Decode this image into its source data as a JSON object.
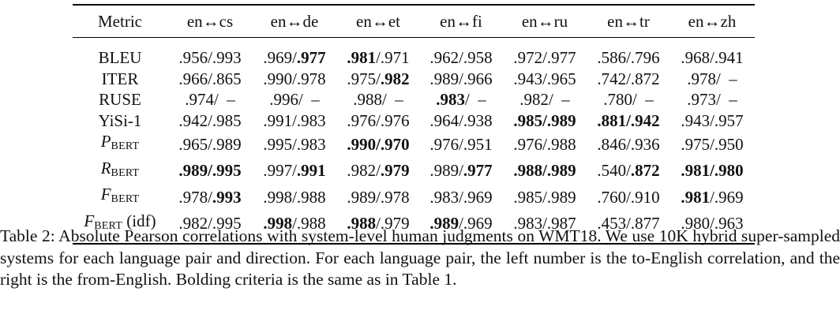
{
  "table": {
    "headers": [
      "Metric",
      "en↔cs",
      "en↔de",
      "en↔et",
      "en↔fi",
      "en↔ru",
      "en↔tr",
      "en↔zh"
    ],
    "rows": [
      {
        "metric": {
          "text": "BLEU"
        },
        "cells": [
          [
            {
              "t": ".956/.993",
              "b": false
            }
          ],
          [
            {
              "t": ".969/",
              "b": false
            },
            {
              "t": ".977",
              "b": true
            }
          ],
          [
            {
              "t": ".981",
              "b": true
            },
            {
              "t": "/.971",
              "b": false
            }
          ],
          [
            {
              "t": ".962/.958",
              "b": false
            }
          ],
          [
            {
              "t": ".972/.977",
              "b": false
            }
          ],
          [
            {
              "t": ".586/.796",
              "b": false
            }
          ],
          [
            {
              "t": ".968/.941",
              "b": false
            }
          ]
        ]
      },
      {
        "metric": {
          "text": "ITER"
        },
        "cells": [
          [
            {
              "t": ".966/.865",
              "b": false
            }
          ],
          [
            {
              "t": ".990/.978",
              "b": false
            }
          ],
          [
            {
              "t": ".975/",
              "b": false
            },
            {
              "t": ".982",
              "b": true
            }
          ],
          [
            {
              "t": ".989/.966",
              "b": false
            }
          ],
          [
            {
              "t": ".943/.965",
              "b": false
            }
          ],
          [
            {
              "t": ".742/.872",
              "b": false
            }
          ],
          [
            {
              "t": ".978/  –",
              "b": false
            }
          ]
        ]
      },
      {
        "metric": {
          "text": "RUSE"
        },
        "cells": [
          [
            {
              "t": ".974/  –",
              "b": false
            }
          ],
          [
            {
              "t": ".996/  –",
              "b": false
            }
          ],
          [
            {
              "t": ".988/  –",
              "b": false
            }
          ],
          [
            {
              "t": ".983",
              "b": true
            },
            {
              "t": "/  –",
              "b": false
            }
          ],
          [
            {
              "t": ".982/  –",
              "b": false
            }
          ],
          [
            {
              "t": ".780/  –",
              "b": false
            }
          ],
          [
            {
              "t": ".973/  –",
              "b": false
            }
          ]
        ]
      },
      {
        "metric": {
          "text": "YiSi-1"
        },
        "cells": [
          [
            {
              "t": ".942/.985",
              "b": false
            }
          ],
          [
            {
              "t": ".991/.983",
              "b": false
            }
          ],
          [
            {
              "t": ".976/.976",
              "b": false
            }
          ],
          [
            {
              "t": ".964/.938",
              "b": false
            }
          ],
          [
            {
              "t": ".985/.989",
              "b": true
            }
          ],
          [
            {
              "t": ".881/.942",
              "b": true
            }
          ],
          [
            {
              "t": ".943/.957",
              "b": false
            }
          ]
        ]
      },
      {
        "metric": {
          "sym": "P",
          "sub": "BERT"
        },
        "cells": [
          [
            {
              "t": ".965/.989",
              "b": false
            }
          ],
          [
            {
              "t": ".995/.983",
              "b": false
            }
          ],
          [
            {
              "t": ".990/.970",
              "b": true
            }
          ],
          [
            {
              "t": ".976/.951",
              "b": false
            }
          ],
          [
            {
              "t": ".976/.988",
              "b": false
            }
          ],
          [
            {
              "t": ".846/.936",
              "b": false
            }
          ],
          [
            {
              "t": ".975/.950",
              "b": false
            }
          ]
        ]
      },
      {
        "metric": {
          "sym": "R",
          "sub": "BERT"
        },
        "cells": [
          [
            {
              "t": ".989/.995",
              "b": true
            }
          ],
          [
            {
              "t": ".997/",
              "b": false
            },
            {
              "t": ".991",
              "b": true
            }
          ],
          [
            {
              "t": ".982/",
              "b": false
            },
            {
              "t": ".979",
              "b": true
            }
          ],
          [
            {
              "t": ".989/",
              "b": false
            },
            {
              "t": ".977",
              "b": true
            }
          ],
          [
            {
              "t": ".988/.989",
              "b": true
            }
          ],
          [
            {
              "t": ".540/",
              "b": false
            },
            {
              "t": ".872",
              "b": true
            }
          ],
          [
            {
              "t": ".981/.980",
              "b": true
            }
          ]
        ]
      },
      {
        "metric": {
          "sym": "F",
          "sub": "BERT"
        },
        "cells": [
          [
            {
              "t": ".978/",
              "b": false
            },
            {
              "t": ".993",
              "b": true
            }
          ],
          [
            {
              "t": ".998/.988",
              "b": false
            }
          ],
          [
            {
              "t": ".989/.978",
              "b": false
            }
          ],
          [
            {
              "t": ".983/.969",
              "b": false
            }
          ],
          [
            {
              "t": ".985/.989",
              "b": false
            }
          ],
          [
            {
              "t": ".760/.910",
              "b": false
            }
          ],
          [
            {
              "t": ".981",
              "b": true
            },
            {
              "t": "/.969",
              "b": false
            }
          ]
        ]
      },
      {
        "metric": {
          "sym": "F",
          "sub": "BERT",
          "suffix": " (idf)"
        },
        "cells": [
          [
            {
              "t": ".982/.995",
              "b": false
            }
          ],
          [
            {
              "t": ".998",
              "b": true
            },
            {
              "t": "/.988",
              "b": false
            }
          ],
          [
            {
              "t": ".988",
              "b": true
            },
            {
              "t": "/.979",
              "b": false
            }
          ],
          [
            {
              "t": ".989",
              "b": true
            },
            {
              "t": "/.969",
              "b": false
            }
          ],
          [
            {
              "t": ".983/.987",
              "b": false
            }
          ],
          [
            {
              "t": ".453/.877",
              "b": false
            }
          ],
          [
            {
              "t": ".980/.963",
              "b": false
            }
          ]
        ]
      }
    ]
  },
  "caption": {
    "label": "Table 2:",
    "text": " Absolute Pearson correlations with system-level human judgments on WMT18. We use 10K hybrid super-sampled systems for each language pair and direction. For each language pair, the left number is the to-English correlation, and the right is the from-English. Bolding criteria is the same as in Table 1."
  }
}
